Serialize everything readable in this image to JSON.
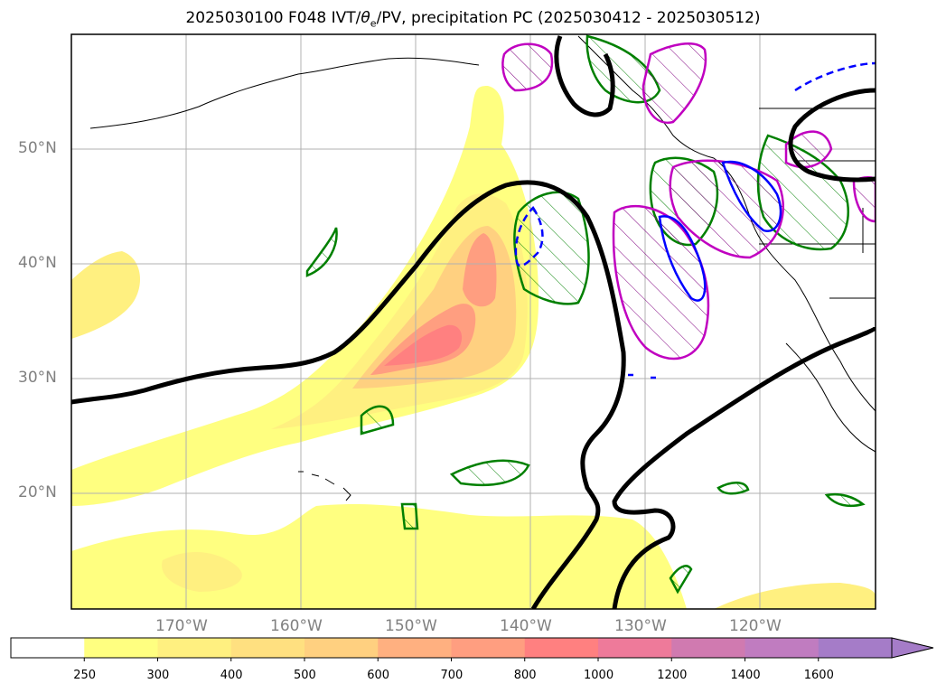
{
  "title": {
    "prefix": "2025030100 F048 IVT/",
    "theta": "θ",
    "theta_sub": "e",
    "suffix": "/PV, precipitation PC (2025030412 - 2025030512)"
  },
  "map": {
    "lat_labels": [
      "50°N",
      "40°N",
      "30°N",
      "20°N"
    ],
    "lon_labels": [
      "170°W",
      "160°W",
      "150°W",
      "140°W",
      "130°W",
      "120°W"
    ]
  },
  "colorbar": {
    "ticks": [
      "250",
      "300",
      "400",
      "500",
      "600",
      "700",
      "800",
      "1000",
      "1200",
      "1400",
      "1600"
    ],
    "colors": [
      "#ffffff",
      "#ffff80",
      "#fff080",
      "#ffe080",
      "#ffd080",
      "#ffb080",
      "#ff9e80",
      "#ff8080",
      "#ee7a9a",
      "#d07ab0",
      "#c07cc0",
      "#a57cc8"
    ],
    "extend": "max"
  },
  "colors": {
    "ivt_low": "#ffff80",
    "ivt_mid": "#ffe080",
    "ivt_high": "#ff9e80",
    "ivt_peak": "#ff8080",
    "pv_contour": "#000000",
    "precip_green": "#008000",
    "precip_magenta": "#c000c0",
    "precip_blue": "#0000ff",
    "grid": "#b0b0b0",
    "axis_label": "#808080"
  }
}
